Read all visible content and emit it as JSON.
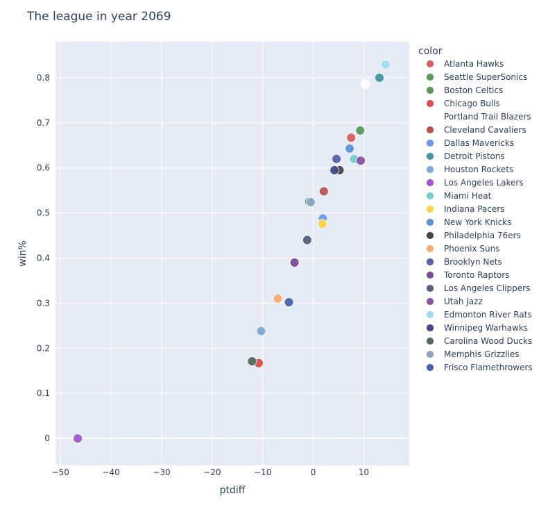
{
  "chart_data": {
    "type": "scatter",
    "title": "The league in year 2069",
    "xlabel": "ptdiff",
    "ylabel": "win%",
    "xlim": [
      -51,
      19
    ],
    "ylim": [
      -0.06,
      0.88
    ],
    "x_ticks": [
      -50,
      -40,
      -30,
      -20,
      -10,
      0,
      10
    ],
    "y_ticks": [
      0,
      0.1,
      0.2,
      0.3,
      0.4,
      0.5,
      0.6,
      0.7,
      0.8
    ],
    "x_tick_labels": [
      "−50",
      "−40",
      "−30",
      "−20",
      "−10",
      "0",
      "10"
    ],
    "y_tick_labels": [
      "0",
      "0.1",
      "0.2",
      "0.3",
      "0.4",
      "0.5",
      "0.6",
      "0.7",
      "0.8"
    ],
    "grid": true,
    "legend_title": "color",
    "legend_position": "right",
    "series": [
      {
        "name": "Atlanta Hawks",
        "color": "#d95f5f",
        "points": [
          [
            7.5,
            0.667
          ]
        ]
      },
      {
        "name": "Seattle SuperSonics",
        "color": "#5a9a5a",
        "points": [
          [
            9.3,
            0.683
          ]
        ]
      },
      {
        "name": "Boston Celtics",
        "color": "#5e9455",
        "points": [
          [
            -0.8,
            0.525
          ]
        ]
      },
      {
        "name": "Chicago Bulls",
        "color": "#e04a4a",
        "points": [
          [
            -10.8,
            0.167
          ]
        ]
      },
      {
        "name": "Portland  Trail Blazers",
        "color": "#ffffff",
        "points": [
          [
            10.3,
            0.786
          ]
        ]
      },
      {
        "name": "Cleveland Cavaliers",
        "color": "#b85555",
        "points": [
          [
            2.1,
            0.548
          ]
        ]
      },
      {
        "name": "Dallas Mavericks",
        "color": "#6f9ae8",
        "points": [
          [
            1.9,
            0.488
          ]
        ]
      },
      {
        "name": "Detroit Pistons",
        "color": "#43979e",
        "points": [
          [
            13.1,
            0.8
          ]
        ]
      },
      {
        "name": "Houston Rockets",
        "color": "#7ea9d3",
        "points": [
          [
            -10.3,
            0.238
          ]
        ]
      },
      {
        "name": "Los Angeles Lakers",
        "color": "#a157cd",
        "points": [
          [
            -46.6,
            0
          ]
        ]
      },
      {
        "name": "Miami Heat",
        "color": "#71cfcd",
        "points": [
          [
            8.1,
            0.62
          ]
        ]
      },
      {
        "name": "Indiana Pacers",
        "color": "#fdd645",
        "points": [
          [
            1.8,
            0.476
          ]
        ]
      },
      {
        "name": "New York Knicks",
        "color": "#5895d4",
        "points": [
          [
            7.2,
            0.643
          ]
        ]
      },
      {
        "name": "Philadelphia 76ers",
        "color": "#444444",
        "points": [
          [
            5.2,
            0.595
          ]
        ]
      },
      {
        "name": "Phoenix  Suns",
        "color": "#f8ac72",
        "points": [
          [
            -7.0,
            0.31
          ]
        ]
      },
      {
        "name": "Brooklyn Nets",
        "color": "#5962a2",
        "points": [
          [
            4.6,
            0.62
          ]
        ]
      },
      {
        "name": "Toronto Raptors",
        "color": "#7c4c95",
        "points": [
          [
            -3.7,
            0.39
          ]
        ]
      },
      {
        "name": "Los Angeles Clippers",
        "color": "#56607b",
        "points": [
          [
            -1.2,
            0.44
          ]
        ]
      },
      {
        "name": "Utah Jazz",
        "color": "#8a55a3",
        "points": [
          [
            9.4,
            0.616
          ]
        ]
      },
      {
        "name": "Edmonton River Rats",
        "color": "#a2daf0",
        "points": [
          [
            14.3,
            0.829
          ]
        ]
      },
      {
        "name": "Winnipeg Warhawks",
        "color": "#434a86",
        "points": [
          [
            4.2,
            0.595
          ]
        ]
      },
      {
        "name": "Carolina Wood Ducks",
        "color": "#4f6b5c",
        "points": [
          [
            -12.1,
            0.171
          ]
        ]
      },
      {
        "name": "Memphis Grizzlies",
        "color": "#8ea4c4",
        "points": [
          [
            -0.5,
            0.524
          ]
        ]
      },
      {
        "name": "Frisco Flamethrowers",
        "color": "#4660ac",
        "points": [
          [
            -4.8,
            0.302
          ]
        ]
      }
    ]
  }
}
